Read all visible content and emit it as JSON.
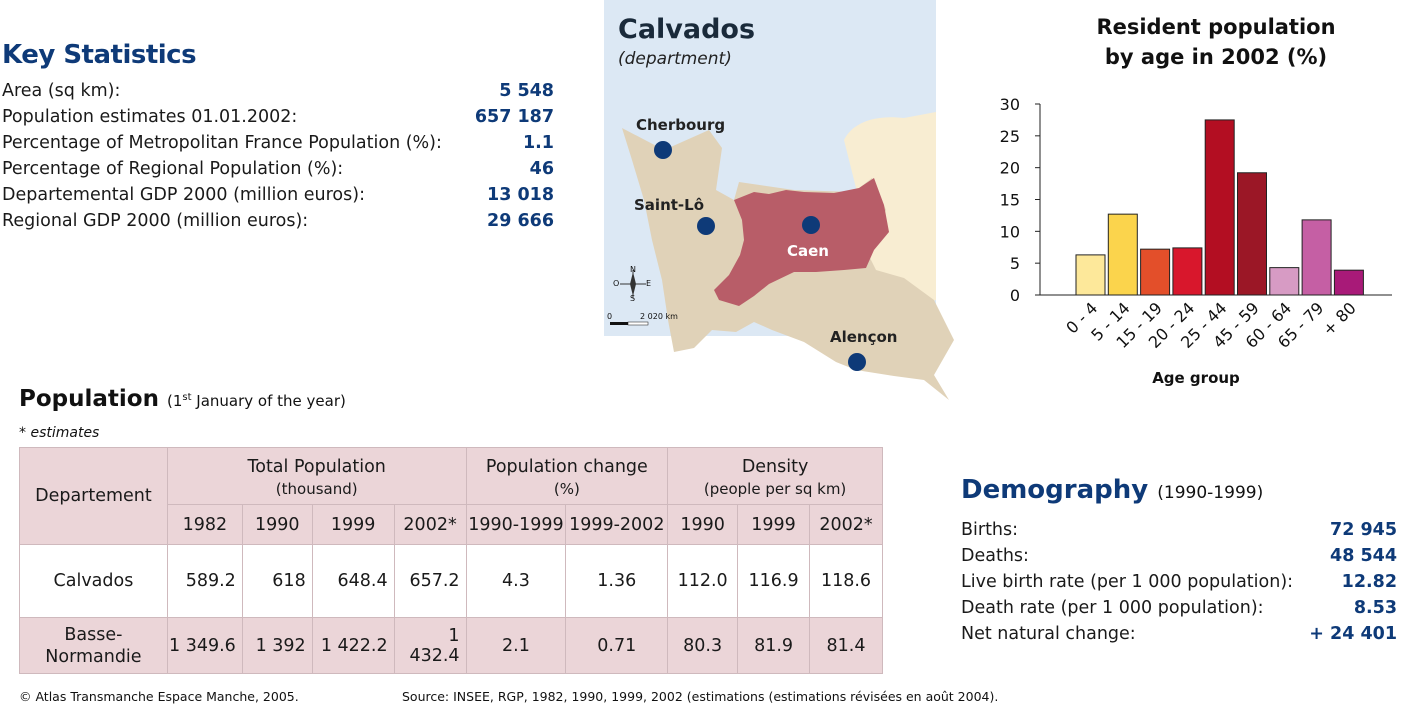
{
  "key_stats": {
    "title": "Key Statistics",
    "rows": [
      {
        "label": "Area (sq km):",
        "value": "5 548"
      },
      {
        "label": "Population estimates 01.01.2002:",
        "value": "657 187"
      },
      {
        "label": "Percentage of Metropolitan France Population (%):",
        "value": "1.1"
      },
      {
        "label": "Percentage of Regional Population (%):",
        "value": "46"
      },
      {
        "label": "Departemental GDP 2000 (million euros):",
        "value": "13 018"
      },
      {
        "label": "Regional GDP 2000 (million euros):",
        "value": "29 666"
      }
    ]
  },
  "map": {
    "title": "Calvados",
    "subtitle": "(department)",
    "cities": {
      "cherbourg": "Cherbourg",
      "saint_lo": "Saint-Lô",
      "caen": "Caen",
      "alencon": "Alençon"
    },
    "compass": {
      "n": "N",
      "s": "S",
      "e": "E",
      "w": "O"
    },
    "scale": {
      "zero": "0",
      "label": "2 020 km"
    },
    "colors": {
      "sea": "#dce8f4",
      "land": "#e0d2b8",
      "calvados": "#b85d68",
      "neighbor": "#f8edd2",
      "city_dot": "#0e3a78"
    }
  },
  "chart_data": {
    "type": "bar",
    "title_line1": "Resident population",
    "title_line2": "by age in 2002 (%)",
    "xlabel": "Age group",
    "ylabel": "",
    "ylim": [
      0,
      30
    ],
    "yticks": [
      0,
      5,
      10,
      15,
      20,
      25,
      30
    ],
    "categories": [
      "0 - 4",
      "5 - 14",
      "15 - 19",
      "20 - 24",
      "25 - 44",
      "45 - 59",
      "60 - 64",
      "65 - 79",
      "+ 80"
    ],
    "values": [
      6.3,
      12.7,
      7.2,
      7.4,
      27.5,
      19.2,
      4.3,
      11.8,
      3.9
    ],
    "colors": [
      "#fde89a",
      "#fbd44c",
      "#e34f2a",
      "#d8172c",
      "#b30e22",
      "#9b1726",
      "#d79bc4",
      "#c55fa4",
      "#a81a78"
    ],
    "grid": false
  },
  "population": {
    "title": "Population",
    "note_pre": "(1",
    "note_sup": "st",
    "note_post": " January of the year)",
    "estimates_note": "* estimates",
    "table": {
      "departement_header": "Departement",
      "groups": [
        {
          "label": "Total Population",
          "sub": "(thousand)"
        },
        {
          "label": "Population change",
          "sub": "(%)"
        },
        {
          "label": "Density",
          "sub": "(people per sq km)"
        }
      ],
      "years": [
        "1982",
        "1990",
        "1999",
        "2002*",
        "1990-1999",
        "1999-2002",
        "1990",
        "1999",
        "2002*"
      ],
      "rows": [
        {
          "name": "Calvados",
          "values": [
            "589.2",
            "618",
            "648.4",
            "657.2",
            "4.3",
            "1.36",
            "112.0",
            "116.9",
            "118.6"
          ]
        },
        {
          "name_line1": "Basse-",
          "name_line2": "Normandie",
          "values": [
            "1 349.6",
            "1 392",
            "1 422.2",
            "1 432.4",
            "2.1",
            "0.71",
            "80.3",
            "81.9",
            "81.4"
          ]
        }
      ]
    }
  },
  "demography": {
    "title": "Demography",
    "note": "(1990-1999)",
    "rows": [
      {
        "label": "Births:",
        "value": "72 945"
      },
      {
        "label": "Deaths:",
        "value": "48 544"
      },
      {
        "label": "Live birth rate (per 1 000 population):",
        "value": "12.82"
      },
      {
        "label": "Death rate (per 1 000 population):",
        "value": "8.53"
      },
      {
        "label": "Net natural change:",
        "value": "+ 24 401"
      }
    ]
  },
  "footer": {
    "copyright": "© Atlas Transmanche Espace Manche, 2005.",
    "source": "Source: INSEE, RGP, 1982, 1990, 1999, 2002 (estimations (estimations révisées en août 2004)."
  }
}
